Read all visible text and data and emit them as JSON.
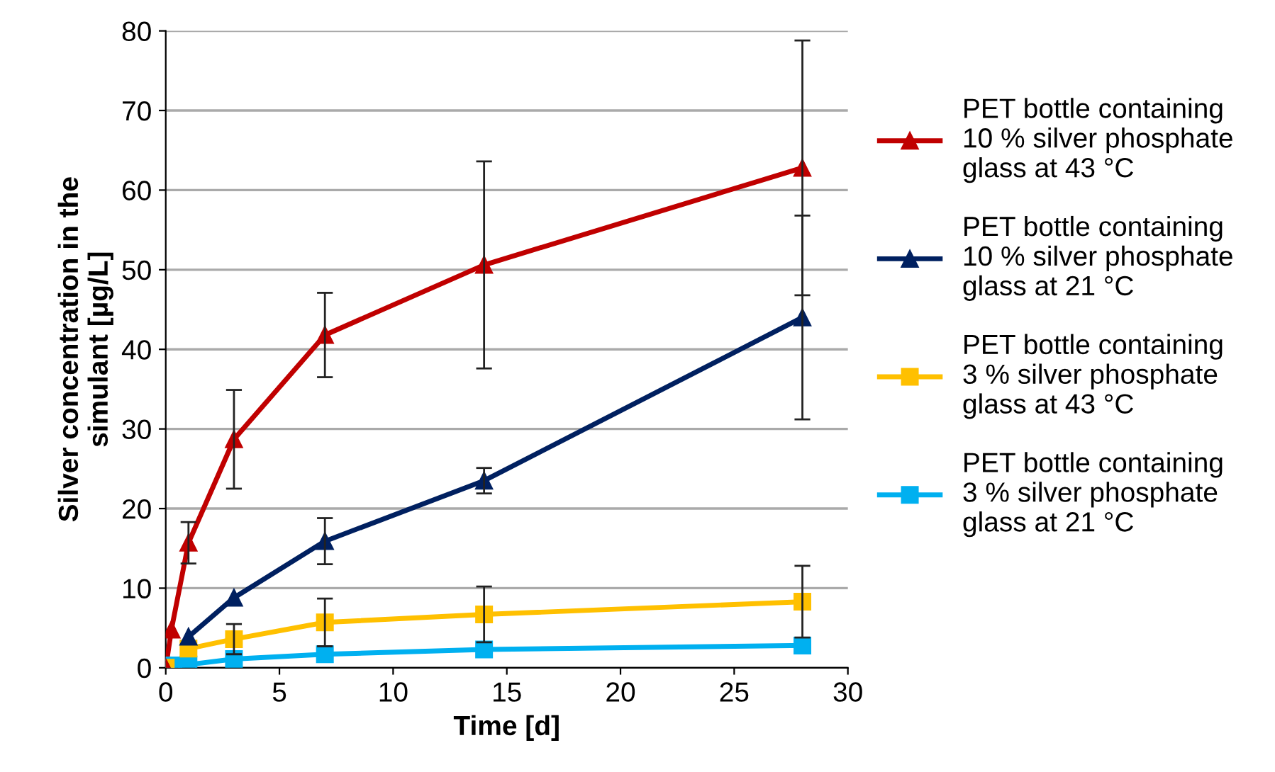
{
  "chart_data": {
    "type": "line",
    "xlabel": "Time [d]",
    "ylabel": "Silver concentration in the\nsimulant [µg/L]",
    "xlim": [
      0,
      30
    ],
    "xticks": [
      0,
      5,
      10,
      15,
      20,
      25,
      30
    ],
    "ylim": [
      0,
      80
    ],
    "yticks": [
      0,
      10,
      20,
      30,
      40,
      50,
      60,
      70,
      80
    ],
    "grid": "y",
    "legend": "right",
    "x": [
      0,
      0.25,
      1,
      3,
      7,
      14,
      28
    ],
    "series": [
      {
        "name": "PET bottle containing\n10 % silver phosphate\nglass at 43 °C",
        "color": "#c00000",
        "marker": "triangle",
        "values": [
          0,
          4.8,
          15.7,
          28.7,
          41.8,
          50.6,
          62.8
        ],
        "errors": [
          null,
          null,
          2.6,
          6.2,
          5.3,
          13,
          16
        ]
      },
      {
        "name": "PET bottle containing\n10 % silver phosphate\nglass at 21 °C",
        "color": "#002060",
        "marker": "triangle",
        "values": [
          0,
          null,
          3.9,
          8.8,
          15.9,
          23.5,
          44
        ],
        "errors": [
          null,
          null,
          null,
          null,
          2.9,
          1.6,
          12.8
        ]
      },
      {
        "name": "PET bottle containing\n3 % silver phosphate\nglass at 43 °C",
        "color": "#ffc000",
        "marker": "square",
        "values": [
          0,
          null,
          2.4,
          3.6,
          5.7,
          6.7,
          8.3
        ],
        "errors": [
          null,
          null,
          null,
          1.9,
          3,
          3.5,
          4.5
        ]
      },
      {
        "name": "PET bottle containing\n3 % silver phosphate\nglass at 21 °C",
        "color": "#00b0f0",
        "marker": "square",
        "values": [
          0,
          0.3,
          0.4,
          1.1,
          1.7,
          2.3,
          2.8
        ],
        "errors": [
          null,
          null,
          null,
          null,
          null,
          null,
          null
        ]
      }
    ]
  }
}
